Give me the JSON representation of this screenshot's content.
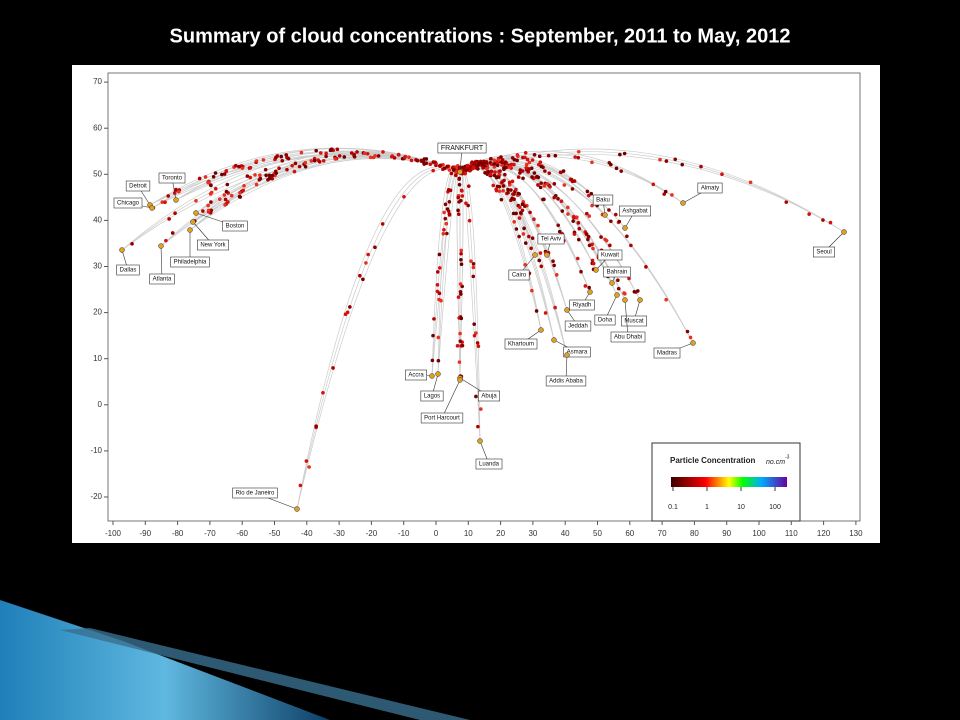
{
  "title": "Summary of cloud concentrations : September, 2011 to May, 2012",
  "map": {
    "x_ticks": [
      -100,
      -90,
      -80,
      -70,
      -60,
      -50,
      -40,
      -30,
      -20,
      -10,
      0,
      10,
      20,
      30,
      40,
      50,
      60,
      70,
      80,
      90,
      100,
      110,
      120,
      130
    ],
    "y_ticks": [
      70,
      60,
      50,
      40,
      30,
      20,
      10,
      0,
      -10,
      -20
    ],
    "cities": [
      "FRANKFURT",
      "Detroit",
      "Toronto",
      "Chicago",
      "Boston",
      "New York",
      "Philadelphia",
      "Dallas",
      "Atlanta",
      "Baku",
      "Ashgabat",
      "Almaty",
      "Tel Aviv",
      "Kuwait",
      "Bahrain",
      "Cairo",
      "Riyadh",
      "Doha",
      "Muscat",
      "Jeddah",
      "Abu Dhabi",
      "Khartoum",
      "Asmara",
      "Madras",
      "Seoul",
      "Accra",
      "Lagos",
      "Abuja",
      "Port Harcourt",
      "Addis Ababa",
      "Luanda",
      "Rio de Janeiro"
    ],
    "legend": {
      "title": "Particle Concentration",
      "unit": "no.cm",
      "unit_exponent": "-3",
      "ticks": [
        0.1,
        1,
        10,
        100
      ]
    }
  }
}
